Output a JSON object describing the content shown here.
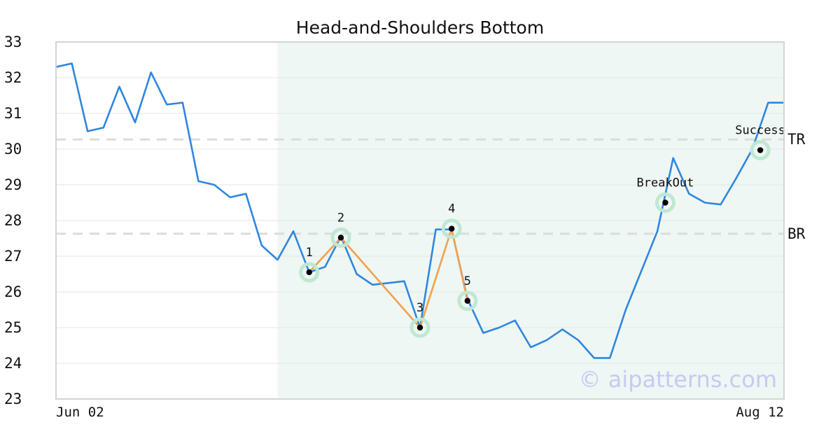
{
  "chart_data": {
    "type": "line",
    "title": "Head-and-Shoulders Bottom",
    "x_tick_labels": [
      "Jun 02",
      "Aug 12"
    ],
    "ylim": [
      23,
      33
    ],
    "yticks": [
      23,
      24,
      25,
      26,
      27,
      28,
      29,
      30,
      31,
      32,
      33
    ],
    "grid": true,
    "series": [
      {
        "values": [
          32.3,
          32.4,
          30.5,
          30.6,
          31.75,
          30.75,
          32.15,
          31.25,
          31.3,
          29.1,
          29.0,
          28.65,
          28.75,
          27.3,
          26.9,
          27.7,
          26.55,
          26.7,
          27.55,
          26.5,
          26.2,
          26.25,
          26.3,
          25.0,
          27.75,
          27.75,
          25.8,
          24.85,
          25.0,
          25.2,
          24.45,
          24.65,
          24.95,
          24.65,
          24.15,
          24.15,
          25.5,
          26.6,
          27.7,
          29.75,
          28.75,
          28.5,
          28.45,
          29.2,
          30.0,
          31.3,
          31.3
        ],
        "color": "#2f86e0"
      }
    ],
    "pattern": {
      "start_index": 14,
      "end_index": 46,
      "shade_color": "#eef7f3",
      "line_color": "#f2a14a",
      "points": [
        {
          "label": "1",
          "index": 16,
          "value": 26.55
        },
        {
          "label": "2",
          "index": 18,
          "value": 27.52
        },
        {
          "label": "3",
          "index": 23,
          "value": 25.0
        },
        {
          "label": "4",
          "index": 25,
          "value": 27.77
        },
        {
          "label": "5",
          "index": 26,
          "value": 25.75
        }
      ]
    },
    "signals": [
      {
        "label": "BreakOut",
        "index": 38.5,
        "value": 28.5
      },
      {
        "label": "Success",
        "index": 44.5,
        "value": 29.97
      }
    ],
    "levels": [
      {
        "label": "TR",
        "value": 30.27
      },
      {
        "label": "BR",
        "value": 27.63
      }
    ],
    "watermark": "© aipatterns.com"
  }
}
